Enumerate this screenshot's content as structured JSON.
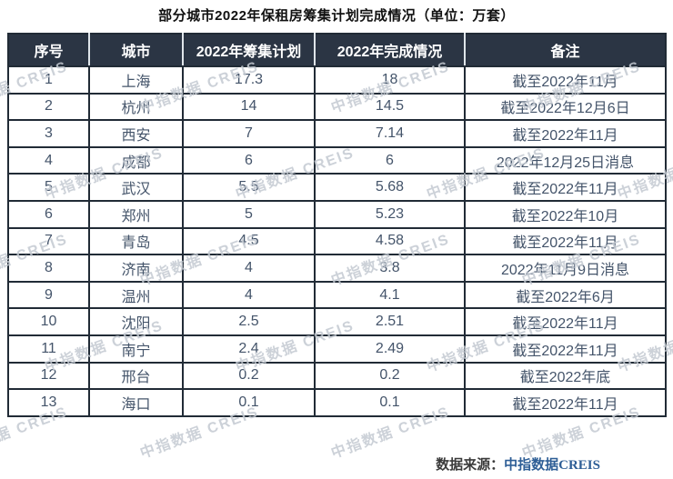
{
  "title": "部分城市2022年保租房筹集计划完成情况（单位：万套）",
  "watermark_text": "中指数据 CREIS",
  "colors": {
    "header_bg": "#2b3544",
    "header_text": "#ffffff",
    "body_text": "#44546a",
    "border": "#212b36",
    "watermark": "#c4cad2",
    "source_accent": "#2e5e96"
  },
  "table": {
    "columns": [
      "序号",
      "城市",
      "2022年筹集计划",
      "2022年完成情况",
      "备注"
    ],
    "rows": [
      {
        "seq": "1",
        "city": "上海",
        "plan": "17.3",
        "done": "18",
        "note": "截至2022年11月"
      },
      {
        "seq": "2",
        "city": "杭州",
        "plan": "14",
        "done": "14.5",
        "note": "截至2022年12月6日"
      },
      {
        "seq": "3",
        "city": "西安",
        "plan": "7",
        "done": "7.14",
        "note": "截至2022年11月"
      },
      {
        "seq": "4",
        "city": "成都",
        "plan": "6",
        "done": "6",
        "note": "2022年12月25日消息"
      },
      {
        "seq": "5",
        "city": "武汉",
        "plan": "5.5",
        "done": "5.68",
        "note": "截至2022年11月"
      },
      {
        "seq": "6",
        "city": "郑州",
        "plan": "5",
        "done": "5.23",
        "note": "截至2022年10月"
      },
      {
        "seq": "7",
        "city": "青岛",
        "plan": "4.5",
        "done": "4.58",
        "note": "截至2022年11月"
      },
      {
        "seq": "8",
        "city": "济南",
        "plan": "4",
        "done": "3.8",
        "note": "2022年11月9日消息"
      },
      {
        "seq": "9",
        "city": "温州",
        "plan": "4",
        "done": "4.1",
        "note": "截至2022年6月"
      },
      {
        "seq": "10",
        "city": "沈阳",
        "plan": "2.5",
        "done": "2.51",
        "note": "截至2022年11月"
      },
      {
        "seq": "11",
        "city": "南宁",
        "plan": "2.4",
        "done": "2.49",
        "note": "截至2022年11月"
      },
      {
        "seq": "12",
        "city": "邢台",
        "plan": "0.2",
        "done": "0.2",
        "note": "截至2022年底"
      },
      {
        "seq": "13",
        "city": "海口",
        "plan": "0.1",
        "done": "0.1",
        "note": "截至2022年11月"
      }
    ]
  },
  "footer": {
    "source_label": "数据来源：",
    "source_name": "中指数据",
    "source_name_en": "CREIS"
  }
}
